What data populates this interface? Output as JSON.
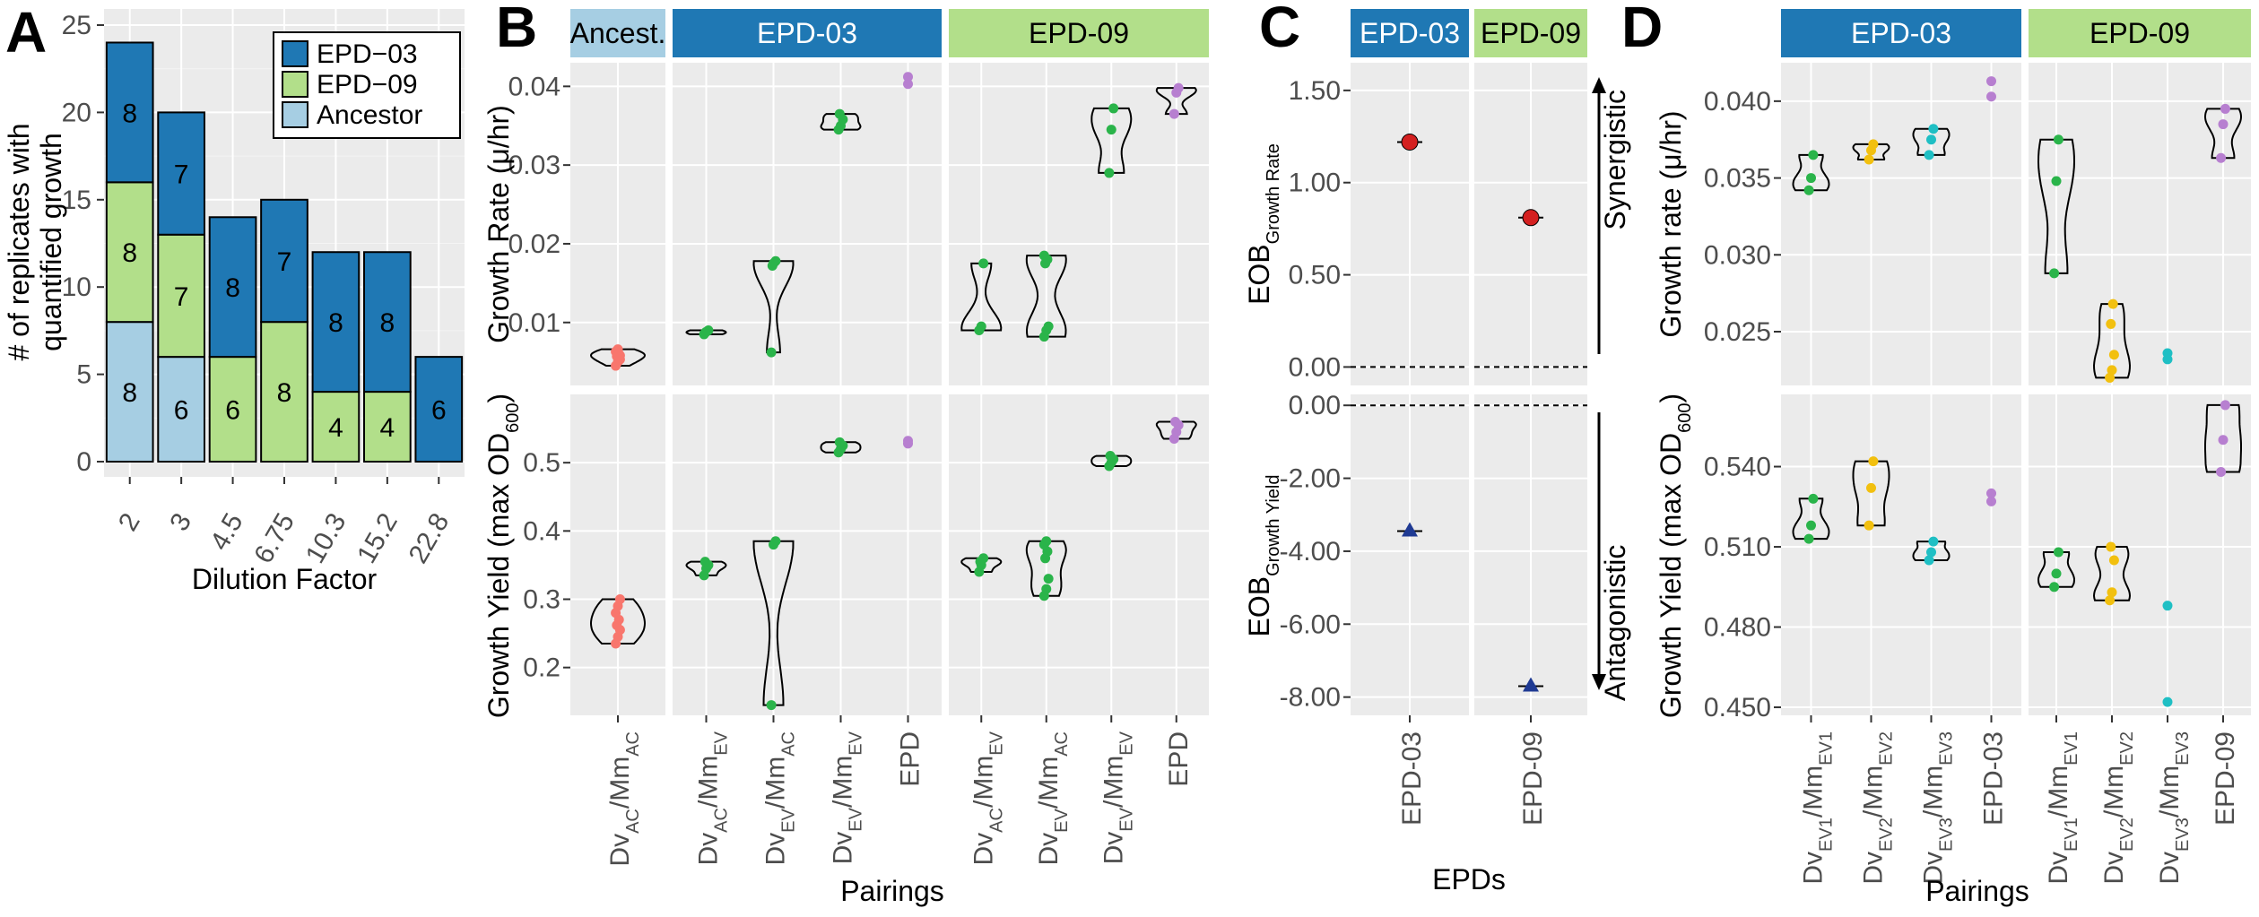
{
  "colors": {
    "panel_bg": "#ebebeb",
    "grid_major": "#ffffff",
    "grid_minor": "#f4f4f4",
    "strip_ancestor": "#a6cee3",
    "strip_epd03": "#1f78b4",
    "strip_epd09": "#b2df8a",
    "ancestor": "#f8766d",
    "pairing": "#2ab44a",
    "epd": "#b77fd0",
    "ev2": "#f2c00f",
    "ev3": "#1fbfc4",
    "eob_rate": "#d42020",
    "eob_yield": "#1f3a93"
  },
  "panel_letters": [
    "A",
    "B",
    "C",
    "D"
  ],
  "panel_a": {
    "ylabel_line1": "# of replicates with",
    "ylabel_line2": "quantified growth",
    "xlabel": "Dilution Factor",
    "yticks": [
      "0",
      "5",
      "10",
      "15",
      "20",
      "25"
    ],
    "legend": [
      "EPD−03",
      "EPD−09",
      "Ancestor"
    ]
  },
  "panel_b": {
    "strips": [
      "Ancest.",
      "EPD-03",
      "EPD-09"
    ],
    "ylabel_rate": "Growth Rate (μ/hr)",
    "ylabel_yield": "Growth Yield (max OD600)",
    "yticks_rate": [
      "0.01",
      "0.02",
      "0.03",
      "0.04"
    ],
    "yticks_yield": [
      "0.2",
      "0.3",
      "0.4",
      "0.5"
    ],
    "xlabel": "Pairings",
    "xticks": {
      "ancestor": [
        "DvAC/MmAC"
      ],
      "epd03": [
        "DvAC/MmEV",
        "DvEV/MmAC",
        "DvEV/MmEV",
        "EPD"
      ],
      "epd09": [
        "DvAC/MmEV",
        "DvEV/MmAC",
        "DvEV/MmEV",
        "EPD"
      ]
    }
  },
  "panel_c": {
    "strips": [
      "EPD-03",
      "EPD-09"
    ],
    "ylabel_rate": "EOB Growth Rate",
    "ylabel_yield": "EOB Growth Yield",
    "yticks_rate": [
      "0.00",
      "0.50",
      "1.00",
      "1.50"
    ],
    "yticks_yield": [
      "-8.00",
      "-6.00",
      "-4.00",
      "-2.00",
      "0.00"
    ],
    "xlabel": "EPDs",
    "xticks": [
      "EPD-03",
      "EPD-09"
    ],
    "synergistic": "Synergistic",
    "antagonistic": "Antagonistic"
  },
  "panel_d": {
    "strips": [
      "EPD-03",
      "EPD-09"
    ],
    "ylabel_rate": "Growth rate (μ/hr)",
    "ylabel_yield": "Growth Yield (max OD600)",
    "yticks_rate": [
      "0.025",
      "0.030",
      "0.035",
      "0.040"
    ],
    "yticks_yield": [
      "0.450",
      "0.480",
      "0.510",
      "0.540"
    ],
    "xlabel": "Pairings",
    "xticks": {
      "epd03": [
        "DvEV1/MmEV1",
        "DvEV2/MmEV2",
        "DvEV3/MmEV3",
        "EPD-03"
      ],
      "epd09": [
        "DvEV1/MmEV1",
        "DvEV2/MmEV2",
        "DvEV3/MmEV3",
        "EPD-09"
      ]
    }
  },
  "chart_data": [
    {
      "panel": "A",
      "type": "bar",
      "stacked": true,
      "xlabel": "Dilution Factor",
      "ylabel": "# of replicates with quantified growth",
      "categories": [
        "2",
        "3",
        "4.5",
        "6.75",
        "10.3",
        "15.2",
        "22.8"
      ],
      "ylim": [
        0,
        25
      ],
      "series": [
        {
          "name": "Ancestor",
          "values": [
            8,
            6,
            0,
            0,
            0,
            0,
            0
          ]
        },
        {
          "name": "EPD−09",
          "values": [
            8,
            7,
            6,
            8,
            4,
            4,
            0
          ]
        },
        {
          "name": "EPD−03",
          "values": [
            8,
            7,
            8,
            7,
            8,
            8,
            6
          ]
        }
      ],
      "data_labels": [
        {
          "series": "Ancestor",
          "values": [
            "8",
            "6",
            "",
            "",
            "",
            "",
            ""
          ]
        },
        {
          "series": "EPD−09",
          "values": [
            "8",
            "7",
            "6",
            "8",
            "4",
            "4",
            ""
          ]
        },
        {
          "series": "EPD−03",
          "values": [
            "8",
            "7",
            "8",
            "7",
            "8",
            "8",
            "6"
          ]
        }
      ],
      "legend_position": "top-right",
      "grid": true
    },
    {
      "panel": "B-rate",
      "type": "scatter",
      "ylabel": "Growth Rate (μ/hr)",
      "ylim": [
        0.002,
        0.043
      ],
      "groups": [
        {
          "facet": "Ancest.",
          "x": "DvAC/MmAC",
          "values": [
            0.0045,
            0.005,
            0.0053,
            0.0057,
            0.006,
            0.0063,
            0.0066,
            0.0058
          ]
        },
        {
          "facet": "EPD-03",
          "x": "DvAC/MmEV",
          "values": [
            0.0085,
            0.0088,
            0.009,
            0.0087
          ]
        },
        {
          "facet": "EPD-03",
          "x": "DvEV/MmAC",
          "values": [
            0.0062,
            0.0175,
            0.0178,
            0.0172
          ]
        },
        {
          "facet": "EPD-03",
          "x": "DvEV/MmEV",
          "values": [
            0.0345,
            0.035,
            0.0358,
            0.0365
          ]
        },
        {
          "facet": "EPD-03",
          "x": "EPD",
          "values": [
            0.0403,
            0.0412
          ]
        },
        {
          "facet": "EPD-09",
          "x": "DvAC/MmEV",
          "values": [
            0.009,
            0.0095,
            0.0175
          ]
        },
        {
          "facet": "EPD-09",
          "x": "DvEV/MmAC",
          "values": [
            0.0082,
            0.009,
            0.0095,
            0.0175,
            0.018,
            0.0185
          ]
        },
        {
          "facet": "EPD-09",
          "x": "DvEV/MmEV",
          "values": [
            0.029,
            0.0345,
            0.0372
          ]
        },
        {
          "facet": "EPD-09",
          "x": "EPD",
          "values": [
            0.0365,
            0.0392,
            0.0398
          ]
        }
      ]
    },
    {
      "panel": "B-yield",
      "type": "scatter",
      "ylabel": "Growth Yield (max OD600)",
      "ylim": [
        0.13,
        0.6
      ],
      "groups": [
        {
          "facet": "Ancest.",
          "x": "DvAC/MmAC",
          "values": [
            0.235,
            0.245,
            0.255,
            0.262,
            0.27,
            0.28,
            0.29,
            0.3
          ]
        },
        {
          "facet": "EPD-03",
          "x": "DvAC/MmEV",
          "values": [
            0.335,
            0.345,
            0.35,
            0.355
          ]
        },
        {
          "facet": "EPD-03",
          "x": "DvEV/MmAC",
          "values": [
            0.145,
            0.38,
            0.385
          ]
        },
        {
          "facet": "EPD-03",
          "x": "DvEV/MmEV",
          "values": [
            0.515,
            0.52,
            0.525,
            0.53
          ]
        },
        {
          "facet": "EPD-03",
          "x": "EPD",
          "values": [
            0.528,
            0.532
          ]
        },
        {
          "facet": "EPD-09",
          "x": "DvAC/MmEV",
          "values": [
            0.34,
            0.35,
            0.36,
            0.355
          ]
        },
        {
          "facet": "EPD-09",
          "x": "DvEV/MmAC",
          "values": [
            0.305,
            0.315,
            0.33,
            0.36,
            0.37,
            0.38,
            0.385
          ]
        },
        {
          "facet": "EPD-09",
          "x": "DvEV/MmEV",
          "values": [
            0.495,
            0.5,
            0.505,
            0.51
          ]
        },
        {
          "facet": "EPD-09",
          "x": "EPD",
          "values": [
            0.535,
            0.545,
            0.555,
            0.56
          ]
        }
      ]
    },
    {
      "panel": "C-rate",
      "type": "scatter",
      "ylabel": "EOB Growth Rate",
      "ylim": [
        -0.1,
        1.65
      ],
      "points": [
        {
          "facet": "EPD-03",
          "x": "EPD-03",
          "y": 1.22
        },
        {
          "facet": "EPD-09",
          "x": "EPD-09",
          "y": 0.81
        }
      ],
      "reference_line": 0
    },
    {
      "panel": "C-yield",
      "type": "scatter",
      "ylabel": "EOB Growth Yield",
      "ylim": [
        -8.5,
        0.3
      ],
      "points": [
        {
          "facet": "EPD-03",
          "x": "EPD-03",
          "y": -3.45
        },
        {
          "facet": "EPD-09",
          "x": "EPD-09",
          "y": -7.7
        }
      ],
      "reference_line": 0
    },
    {
      "panel": "D-rate",
      "type": "scatter",
      "ylabel": "Growth rate (μ/hr)",
      "ylim": [
        0.0215,
        0.0425
      ],
      "groups": [
        {
          "facet": "EPD-03",
          "x": "DvEV1/MmEV1",
          "values": [
            0.0342,
            0.035,
            0.0365
          ]
        },
        {
          "facet": "EPD-03",
          "x": "DvEV2/MmEV2",
          "values": [
            0.0362,
            0.0368,
            0.0372
          ]
        },
        {
          "facet": "EPD-03",
          "x": "DvEV3/MmEV3",
          "values": [
            0.0365,
            0.0375,
            0.0382
          ]
        },
        {
          "facet": "EPD-03",
          "x": "EPD-03",
          "values": [
            0.0403,
            0.0413
          ]
        },
        {
          "facet": "EPD-09",
          "x": "DvEV1/MmEV1",
          "values": [
            0.0288,
            0.0348,
            0.0375
          ]
        },
        {
          "facet": "EPD-09",
          "x": "DvEV2/MmEV2",
          "values": [
            0.022,
            0.0225,
            0.0235,
            0.0255,
            0.0268
          ]
        },
        {
          "facet": "EPD-09",
          "x": "DvEV3/MmEV3",
          "values": [
            0.0232,
            0.0236
          ]
        },
        {
          "facet": "EPD-09",
          "x": "EPD-09",
          "values": [
            0.0363,
            0.0385,
            0.0395
          ]
        }
      ]
    },
    {
      "panel": "D-yield",
      "type": "scatter",
      "ylabel": "Growth Yield (max OD600)",
      "ylim": [
        0.447,
        0.567
      ],
      "groups": [
        {
          "facet": "EPD-03",
          "x": "DvEV1/MmEV1",
          "values": [
            0.513,
            0.518,
            0.528
          ]
        },
        {
          "facet": "EPD-03",
          "x": "DvEV2/MmEV2",
          "values": [
            0.518,
            0.532,
            0.542
          ]
        },
        {
          "facet": "EPD-03",
          "x": "DvEV3/MmEV3",
          "values": [
            0.505,
            0.508,
            0.512
          ]
        },
        {
          "facet": "EPD-03",
          "x": "EPD-03",
          "values": [
            0.527,
            0.53
          ]
        },
        {
          "facet": "EPD-09",
          "x": "DvEV1/MmEV1",
          "values": [
            0.495,
            0.5,
            0.508
          ]
        },
        {
          "facet": "EPD-09",
          "x": "DvEV2/MmEV2",
          "values": [
            0.49,
            0.493,
            0.505,
            0.51
          ]
        },
        {
          "facet": "EPD-09",
          "x": "DvEV3/MmEV3",
          "values": [
            0.452,
            0.488
          ]
        },
        {
          "facet": "EPD-09",
          "x": "EPD-09",
          "values": [
            0.538,
            0.55,
            0.563
          ]
        }
      ]
    }
  ]
}
